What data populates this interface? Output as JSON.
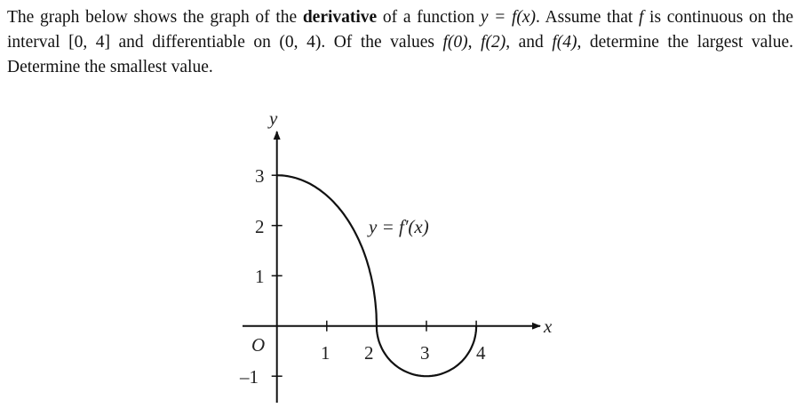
{
  "problem": {
    "p1": "The graph below shows the graph of the ",
    "bold": "derivative",
    "p2": " of a function ",
    "m1": "y = f(x)",
    "p3": ". Assume that ",
    "m2": "f",
    "p4": " is continuous on the interval ",
    "m3": "[0, 4]",
    "p5": " and differentiable on ",
    "m4": "(0, 4)",
    "p6": ". Of the values ",
    "m5": "f(0)",
    "p7": ", ",
    "m6": "f(2)",
    "p8": ", and ",
    "m7": "f(4)",
    "p9": ", determine the largest value. Determine the smallest value."
  },
  "graph": {
    "x_axis_label": "x",
    "y_axis_label": "y",
    "origin_label": "O",
    "x_ticks": [
      "1",
      "2",
      "3",
      "4"
    ],
    "y_ticks": [
      "3",
      "2",
      "1",
      "–1"
    ],
    "curve_label": "y = f′(x)",
    "curve": {
      "piece1": "quarter ellipse from (0, 3) to (2, 0)",
      "piece2": "semicircle below axis from (2, 0) through (3, -1) to (4, 0)"
    },
    "curve_color": "#111111"
  }
}
